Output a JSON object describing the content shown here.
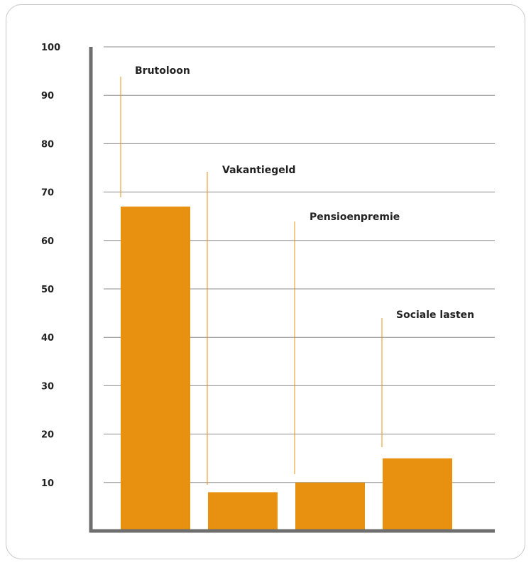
{
  "chart_data": {
    "type": "bar",
    "categories": [
      "Brutoloon",
      "Vakantiegeld",
      "Pensioenpremie",
      "Sociale lasten"
    ],
    "values": [
      67,
      8,
      10,
      15
    ],
    "yticks": [
      10,
      20,
      30,
      40,
      50,
      60,
      70,
      80,
      90,
      100
    ],
    "ylim": [
      0,
      100
    ],
    "grid": true,
    "bar_color": "#E8900F",
    "axis_color": "#6E6E6E",
    "grid_color": "#8C8C8C",
    "leader_color": "#E8900F"
  }
}
